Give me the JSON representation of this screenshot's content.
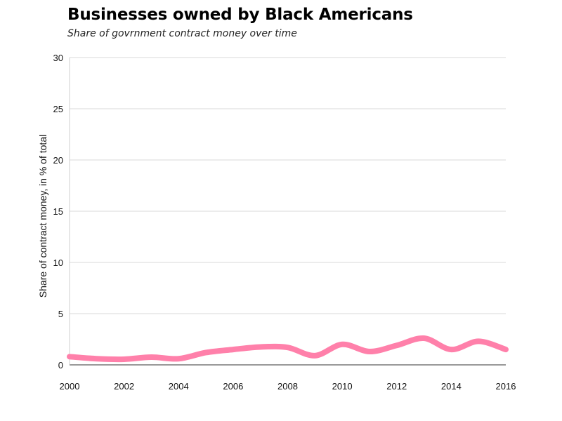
{
  "chart_data": {
    "type": "line",
    "title": "Businesses owned by Black Americans",
    "subtitle": "Share of govrnment contract money over time",
    "xlabel": "",
    "ylabel": "Share of contract money, in % of total",
    "x": [
      2000,
      2001,
      2002,
      2003,
      2004,
      2005,
      2006,
      2007,
      2008,
      2009,
      2010,
      2011,
      2012,
      2013,
      2014,
      2015,
      2016
    ],
    "series": [
      {
        "values": [
          0.8,
          0.6,
          0.55,
          0.75,
          0.6,
          1.2,
          1.5,
          1.75,
          1.7,
          0.9,
          2.0,
          1.3,
          1.9,
          2.6,
          1.5,
          2.3,
          1.5
        ]
      }
    ],
    "xlim": [
      2000,
      2016
    ],
    "ylim": [
      0,
      30
    ],
    "x_ticks": [
      "2000",
      "2002",
      "2004",
      "2006",
      "2008",
      "2010",
      "2012",
      "2014",
      "2016"
    ],
    "y_ticks": [
      "0",
      "5",
      "10",
      "15",
      "20",
      "25",
      "30"
    ],
    "grid": "horizontal",
    "line_color": "#ff80aa"
  }
}
